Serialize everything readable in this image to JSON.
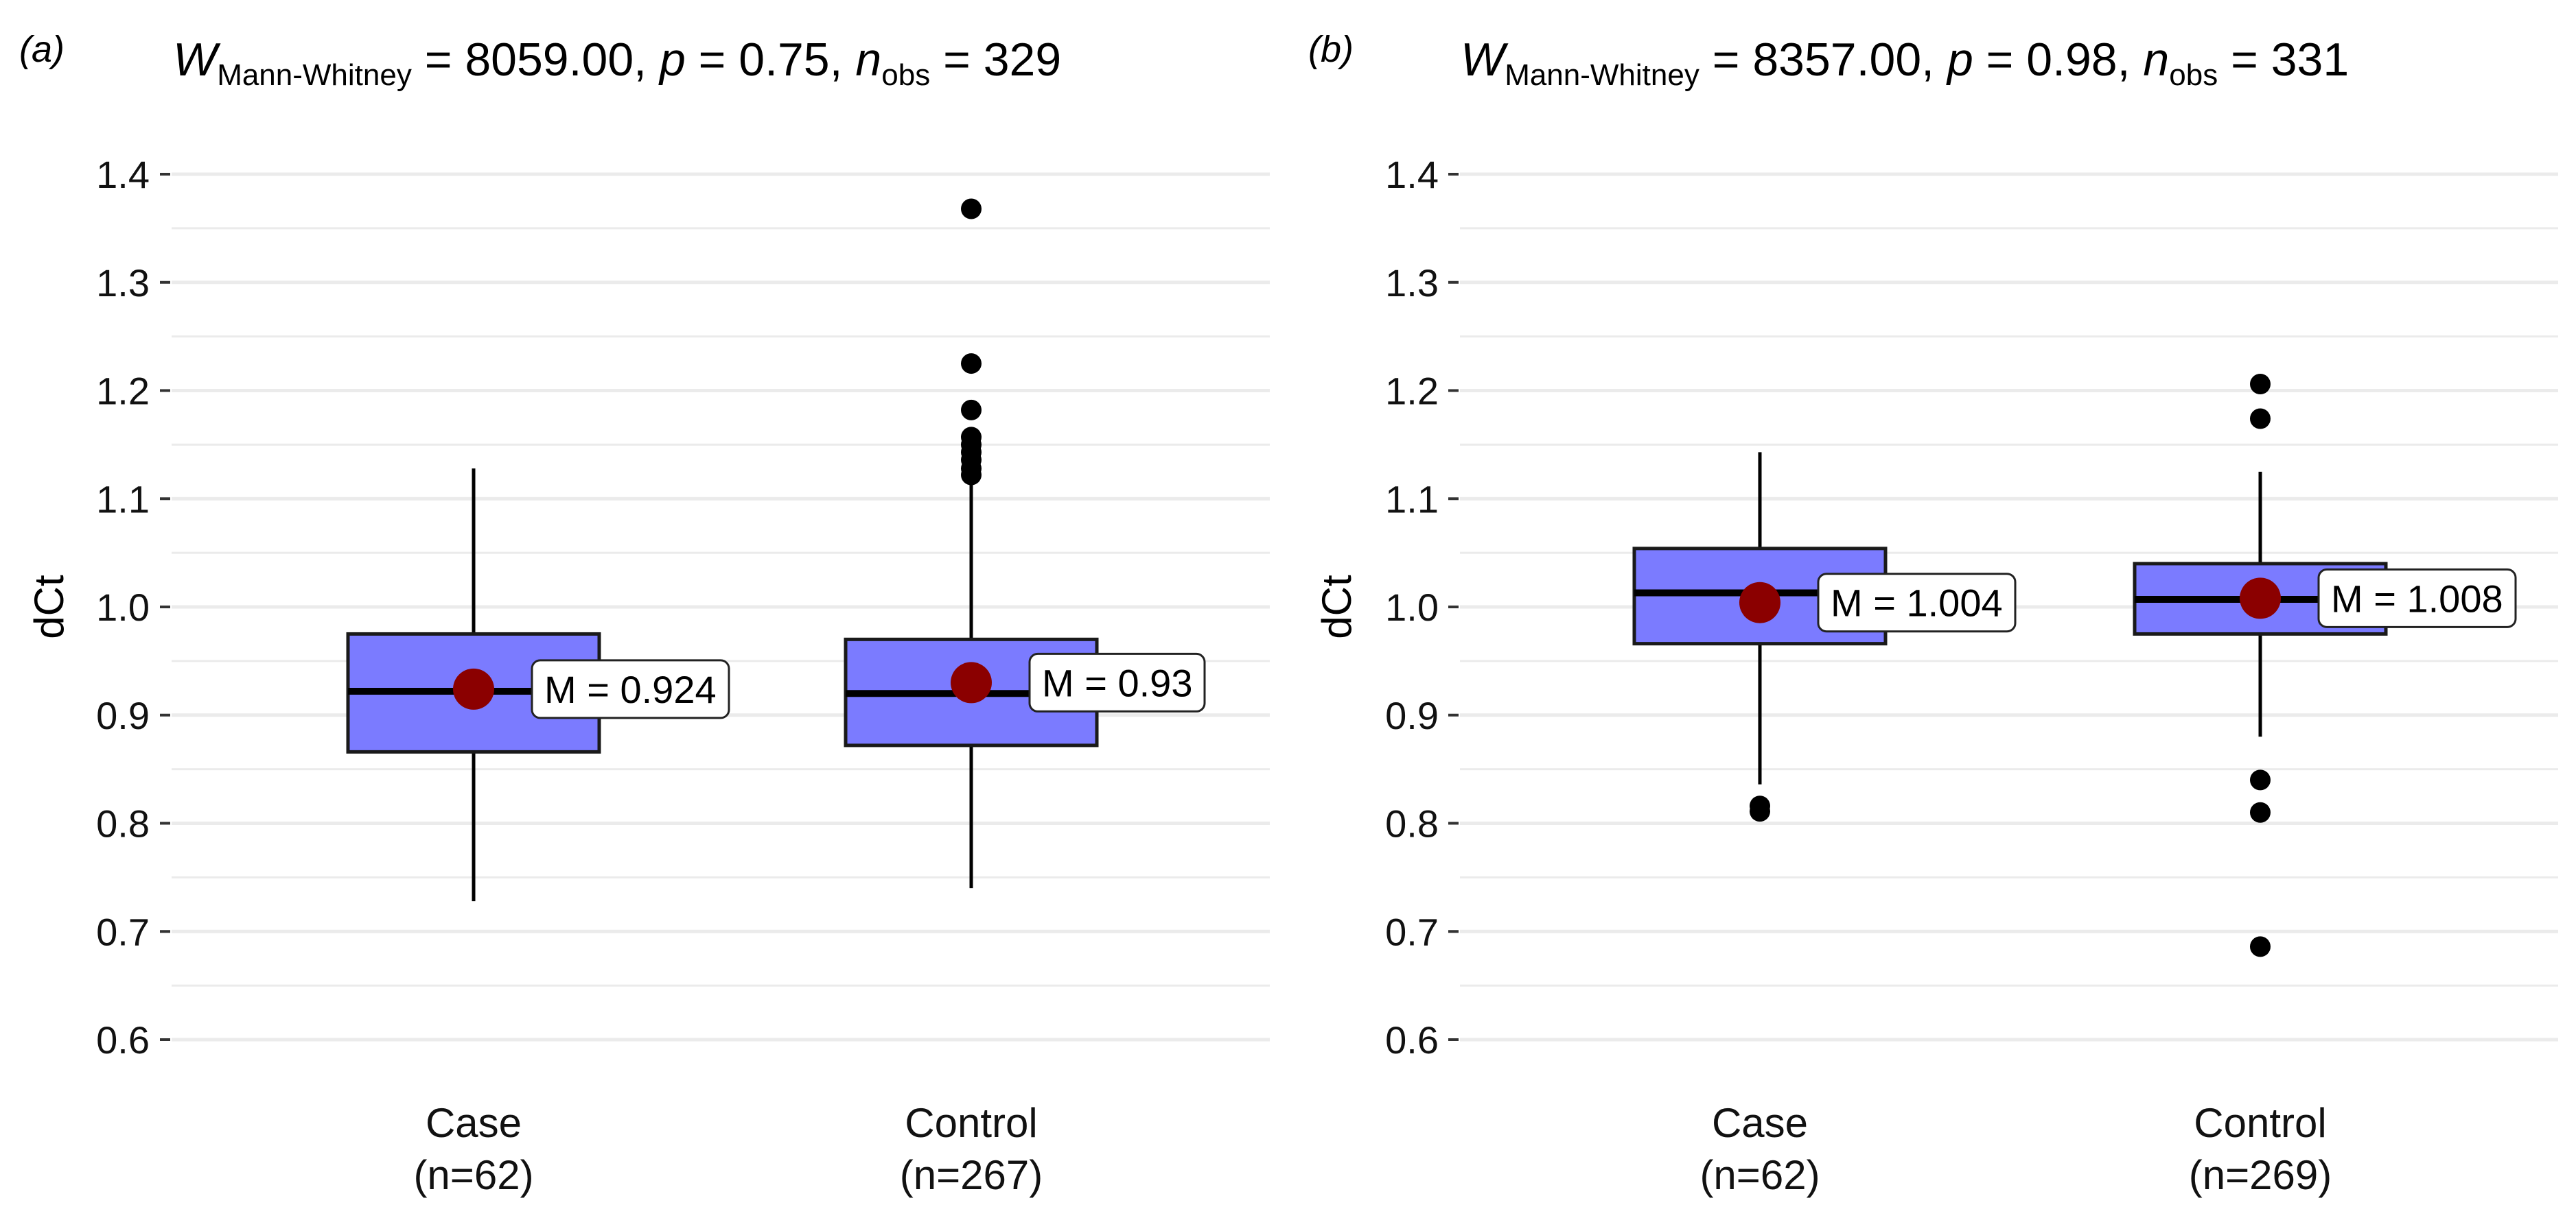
{
  "chart_data": [
    {
      "type": "box",
      "panel": "(a)",
      "title": {
        "stat_symbol": "W",
        "stat_subscript": "Mann-Whitney",
        "stat_value": " = 8059.00, ",
        "p_symbol": "p",
        "p_value": " = 0.75, ",
        "n_symbol": "n",
        "n_subscript": "obs",
        "n_value": " = 329"
      },
      "ylabel": "dCt",
      "xlabel": "",
      "ylim": [
        0.6,
        1.4
      ],
      "yticks": [
        0.6,
        0.7,
        0.8,
        0.9,
        1.0,
        1.1,
        1.2,
        1.3,
        1.4
      ],
      "ytick_labels": [
        "0.6",
        "0.7",
        "0.8",
        "0.9",
        "1.0",
        "1.1",
        "1.2",
        "1.3",
        "1.4"
      ],
      "grid": true,
      "groups": [
        {
          "label": "Case",
          "n_label": "(n=62)",
          "whisker_low": 0.728,
          "q1": 0.866,
          "median": 0.922,
          "q3": 0.975,
          "whisker_high": 1.128,
          "mean": 0.924,
          "mean_label": "M =  0.924",
          "outliers": []
        },
        {
          "label": "Control",
          "n_label": "(n=267)",
          "whisker_low": 0.74,
          "q1": 0.872,
          "median": 0.92,
          "q3": 0.97,
          "whisker_high": 1.12,
          "mean": 0.93,
          "mean_label": "M =  0.93",
          "outliers": [
            1.368,
            1.225,
            1.182,
            1.157,
            1.15,
            1.143,
            1.136,
            1.128,
            1.122
          ]
        }
      ]
    },
    {
      "type": "box",
      "panel": "(b)",
      "title": {
        "stat_symbol": "W",
        "stat_subscript": "Mann-Whitney",
        "stat_value": " = 8357.00, ",
        "p_symbol": "p",
        "p_value": " = 0.98, ",
        "n_symbol": "n",
        "n_subscript": "obs",
        "n_value": " = 331"
      },
      "ylabel": "dCt",
      "xlabel": "",
      "ylim": [
        0.6,
        1.4
      ],
      "yticks": [
        0.6,
        0.7,
        0.8,
        0.9,
        1.0,
        1.1,
        1.2,
        1.3,
        1.4
      ],
      "ytick_labels": [
        "0.6",
        "0.7",
        "0.8",
        "0.9",
        "1.0",
        "1.1",
        "1.2",
        "1.3",
        "1.4"
      ],
      "grid": true,
      "groups": [
        {
          "label": "Case",
          "n_label": "(n=62)",
          "whisker_low": 0.836,
          "q1": 0.966,
          "median": 1.013,
          "q3": 1.054,
          "whisker_high": 1.143,
          "mean": 1.004,
          "mean_label": "M =  1.004",
          "outliers": [
            0.816,
            0.811
          ]
        },
        {
          "label": "Control",
          "n_label": "(n=269)",
          "whisker_low": 0.88,
          "q1": 0.975,
          "median": 1.007,
          "q3": 1.04,
          "whisker_high": 1.125,
          "mean": 1.008,
          "mean_label": "M =  1.008",
          "outliers": [
            1.206,
            1.174,
            0.84,
            0.81,
            0.686
          ]
        }
      ]
    }
  ],
  "colors": {
    "box_fill": "#7b7bff",
    "box_stroke": "#1a1a1a",
    "median": "#000000",
    "mean_point": "#8b0000",
    "outlier": "#000000",
    "grid": "#ebebeb"
  }
}
